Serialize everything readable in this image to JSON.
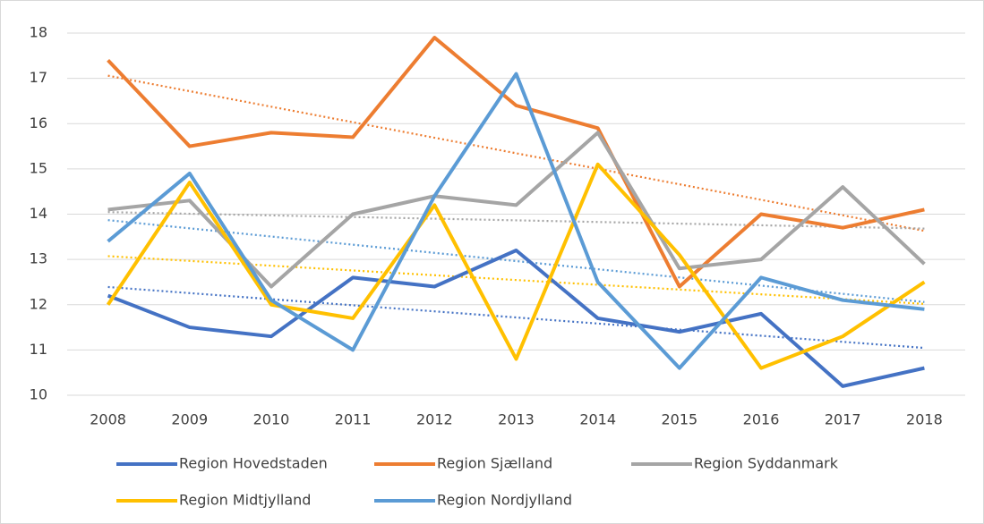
{
  "chart_data": {
    "type": "line",
    "categories": [
      "2008",
      "2009",
      "2010",
      "2011",
      "2012",
      "2013",
      "2014",
      "2015",
      "2016",
      "2017",
      "2018"
    ],
    "series": [
      {
        "name": "Region Hovedstaden",
        "color": "#4472c4",
        "values": [
          12.2,
          11.5,
          11.3,
          12.6,
          12.4,
          13.2,
          11.7,
          11.4,
          11.8,
          10.2,
          10.6
        ]
      },
      {
        "name": "Region Sjælland",
        "color": "#ed7d31",
        "values": [
          17.4,
          15.5,
          15.8,
          15.7,
          17.9,
          16.4,
          15.9,
          12.4,
          14.0,
          13.7,
          14.1
        ]
      },
      {
        "name": "Region Syddanmark",
        "color": "#a5a5a5",
        "values": [
          14.1,
          14.3,
          12.4,
          14.0,
          14.4,
          14.2,
          15.8,
          12.8,
          13.0,
          14.6,
          12.9
        ]
      },
      {
        "name": "Region Midtjylland",
        "color": "#ffc000",
        "values": [
          12.0,
          14.7,
          12.0,
          11.7,
          14.2,
          10.8,
          15.1,
          13.1,
          10.6,
          11.3,
          12.5
        ]
      },
      {
        "name": "Region Nordjylland",
        "color": "#5b9bd5",
        "values": [
          13.4,
          14.9,
          12.1,
          11.0,
          14.4,
          17.1,
          12.5,
          10.6,
          12.6,
          12.1,
          11.9
        ]
      }
    ],
    "ylim": [
      10,
      18
    ],
    "yticks": [
      10,
      11,
      12,
      13,
      14,
      15,
      16,
      17,
      18
    ],
    "grid": true,
    "trendline": true,
    "legend": "bottom"
  }
}
